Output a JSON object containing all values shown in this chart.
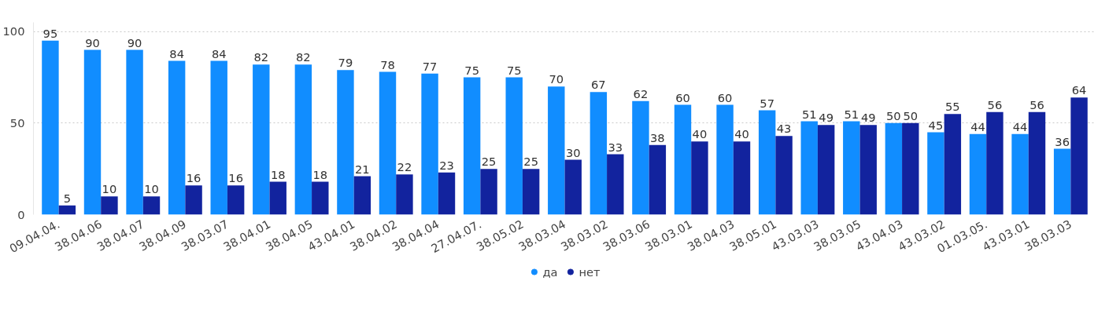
{
  "chart_data": {
    "type": "bar",
    "categories": [
      "09.04.04.",
      "38.04.06",
      "38.04.07",
      "38.04.09",
      "38.03.07",
      "38.04.01",
      "38.04.05",
      "43.04.01",
      "38.04.02",
      "38.04.04",
      "27.04.07.",
      "38.05.02",
      "38.03.04",
      "38.03.02",
      "38.03.06",
      "38.03.01",
      "38.04.03",
      "38.05.01",
      "43.03.03",
      "38.03.05",
      "43.04.03",
      "43.03.02",
      "01.03.05.",
      "43.03.01",
      "38.03.03"
    ],
    "series": [
      {
        "name": "да",
        "color": "#118dff",
        "values": [
          95,
          90,
          90,
          84,
          84,
          82,
          82,
          79,
          78,
          77,
          75,
          75,
          70,
          67,
          62,
          60,
          60,
          57,
          51,
          51,
          50,
          45,
          44,
          44,
          36
        ]
      },
      {
        "name": "нет",
        "color": "#12239e",
        "values": [
          5,
          10,
          10,
          16,
          16,
          18,
          18,
          21,
          22,
          23,
          25,
          25,
          30,
          33,
          38,
          40,
          40,
          43,
          49,
          49,
          50,
          55,
          56,
          56,
          64
        ]
      }
    ],
    "ylim": [
      0,
      105
    ],
    "yticks": [
      0,
      50,
      100
    ],
    "grid": "y",
    "legend": "bottom",
    "marker": "circle",
    "data_labels": true
  }
}
